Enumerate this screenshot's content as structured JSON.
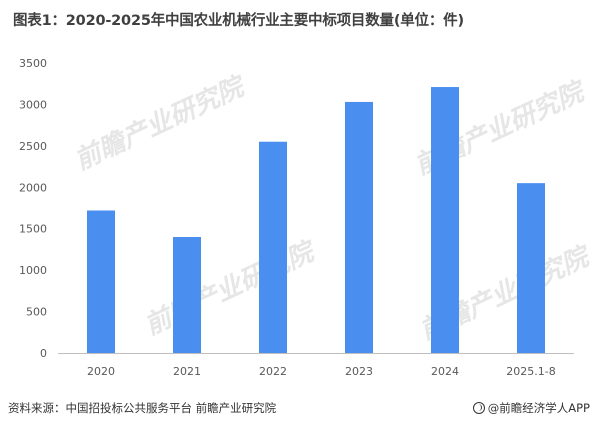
{
  "title": "图表1：2020-2025年中国农业机械行业主要中标项目数量(单位：件)",
  "footer": {
    "source": "资料来源：中国招投标公共服务平台 前瞻产业研究院",
    "brand": "@前瞻经济学人APP",
    "brand_icon": "qianzhan-logo-icon"
  },
  "watermark_text": "前瞻产业研究院",
  "colors": {
    "bar": "#4a8ff0",
    "axis": "#bfbfbf",
    "text": "#595959"
  },
  "chart_data": {
    "type": "bar",
    "categories": [
      "2020",
      "2021",
      "2022",
      "2023",
      "2024",
      "2025.1-8"
    ],
    "values": [
      1720,
      1400,
      2550,
      3030,
      3210,
      2050
    ],
    "ylim": [
      0,
      3500
    ],
    "yticks": [
      0,
      500,
      1000,
      1500,
      2000,
      2500,
      3000,
      3500
    ],
    "grid": false,
    "legend": "none"
  }
}
